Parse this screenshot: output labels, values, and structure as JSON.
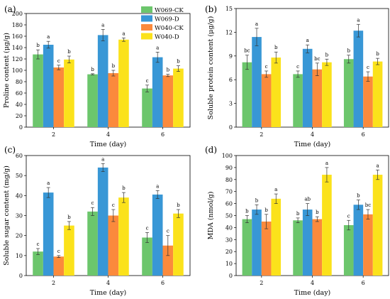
{
  "legend": {
    "placement": "top-right of panel (a)",
    "entries": [
      "W069-CK",
      "W069-D",
      "W040-CK",
      "W040-D"
    ],
    "colors": [
      "#6cc66c",
      "#3897d6",
      "#fb8a3c",
      "#fbe21b"
    ]
  },
  "chart_data": [
    {
      "type": "bar",
      "panel_label": "(a)",
      "xlabel": "Time (day)",
      "ylabel": "Proline content (μg/g)",
      "categories": [
        "2",
        "4",
        "6"
      ],
      "ylim": [
        0,
        200
      ],
      "yticks": [
        0,
        20,
        40,
        60,
        80,
        100,
        120,
        140,
        160,
        180,
        200
      ],
      "series": [
        {
          "name": "W069-CK",
          "values": [
            128,
            93,
            68
          ],
          "errors": [
            8,
            1,
            6
          ],
          "letters": [
            "b",
            "b",
            "c"
          ]
        },
        {
          "name": "W069-D",
          "values": [
            145,
            162,
            123
          ],
          "errors": [
            6,
            10,
            9
          ],
          "letters": [
            "a",
            "a",
            "a"
          ]
        },
        {
          "name": "W040-CK",
          "values": [
            105,
            95,
            91
          ],
          "errors": [
            4,
            5,
            2
          ],
          "letters": [
            "c",
            "b",
            "b"
          ]
        },
        {
          "name": "W040-D",
          "values": [
            119,
            154,
            103
          ],
          "errors": [
            6,
            3,
            5
          ],
          "letters": [
            "b",
            "a",
            "b"
          ]
        }
      ]
    },
    {
      "type": "bar",
      "panel_label": "(b)",
      "xlabel": "Time (day)",
      "ylabel": "Soluble protein content (μg/g)",
      "categories": [
        "2",
        "4",
        "6"
      ],
      "ylim": [
        0,
        15
      ],
      "yticks": [
        0,
        3,
        6,
        9,
        12,
        15
      ],
      "series": [
        {
          "name": "W069-CK",
          "values": [
            8.2,
            6.7,
            8.6
          ],
          "errors": [
            0.9,
            0.4,
            0.5
          ],
          "letters": [
            "bc",
            "c",
            "b"
          ]
        },
        {
          "name": "W069-D",
          "values": [
            11.4,
            9.9,
            12.2
          ],
          "errors": [
            1.1,
            0.5,
            0.8
          ],
          "letters": [
            "a",
            "a",
            "a"
          ]
        },
        {
          "name": "W040-CK",
          "values": [
            6.7,
            7.3,
            6.4
          ],
          "errors": [
            0.4,
            0.8,
            0.6
          ],
          "letters": [
            "c",
            "bc",
            "c"
          ]
        },
        {
          "name": "W040-D",
          "values": [
            8.8,
            8.2,
            8.3
          ],
          "errors": [
            0.7,
            0.4,
            0.4
          ],
          "letters": [
            "b",
            "b",
            "b"
          ]
        }
      ]
    },
    {
      "type": "bar",
      "panel_label": "(c)",
      "xlabel": "Time (day)",
      "ylabel": "Soluble sugar content (mg/g)",
      "categories": [
        "2",
        "4",
        "6"
      ],
      "ylim": [
        0,
        60
      ],
      "yticks": [
        0,
        10,
        20,
        30,
        40,
        50,
        60
      ],
      "series": [
        {
          "name": "W069-CK",
          "values": [
            12,
            32,
            19
          ],
          "errors": [
            1.5,
            2,
            2.5
          ],
          "letters": [
            "c",
            "c",
            "c"
          ]
        },
        {
          "name": "W069-D",
          "values": [
            41.5,
            54,
            40.5
          ],
          "errors": [
            2.5,
            2,
            2
          ],
          "letters": [
            "a",
            "a",
            "a"
          ]
        },
        {
          "name": "W040-CK",
          "values": [
            9.5,
            30,
            15
          ],
          "errors": [
            0.5,
            3,
            5
          ],
          "letters": [
            "c",
            "c",
            "c"
          ]
        },
        {
          "name": "W040-D",
          "values": [
            25,
            39,
            31
          ],
          "errors": [
            2,
            2.5,
            2
          ],
          "letters": [
            "b",
            "b",
            "b"
          ]
        }
      ]
    },
    {
      "type": "bar",
      "panel_label": "(d)",
      "xlabel": "Time (day)",
      "ylabel": "MDA (nmol/g)",
      "categories": [
        "2",
        "4",
        "6"
      ],
      "ylim": [
        0,
        100
      ],
      "yticks": [
        0,
        10,
        20,
        30,
        40,
        50,
        60,
        70,
        80,
        90,
        100
      ],
      "series": [
        {
          "name": "W069-CK",
          "values": [
            47,
            46,
            42
          ],
          "errors": [
            3,
            2,
            4
          ],
          "letters": [
            "b",
            "b",
            "c"
          ]
        },
        {
          "name": "W069-D",
          "values": [
            55,
            55,
            59
          ],
          "errors": [
            4,
            5,
            4
          ],
          "letters": [
            "b",
            "ab",
            "b"
          ]
        },
        {
          "name": "W040-CK",
          "values": [
            45,
            47,
            51
          ],
          "errors": [
            6,
            2,
            4
          ],
          "letters": [
            "b",
            "b",
            "bc"
          ]
        },
        {
          "name": "W040-D",
          "values": [
            64,
            84,
            84
          ],
          "errors": [
            4,
            6,
            4
          ],
          "letters": [
            "a",
            "a",
            "a"
          ]
        }
      ]
    }
  ]
}
